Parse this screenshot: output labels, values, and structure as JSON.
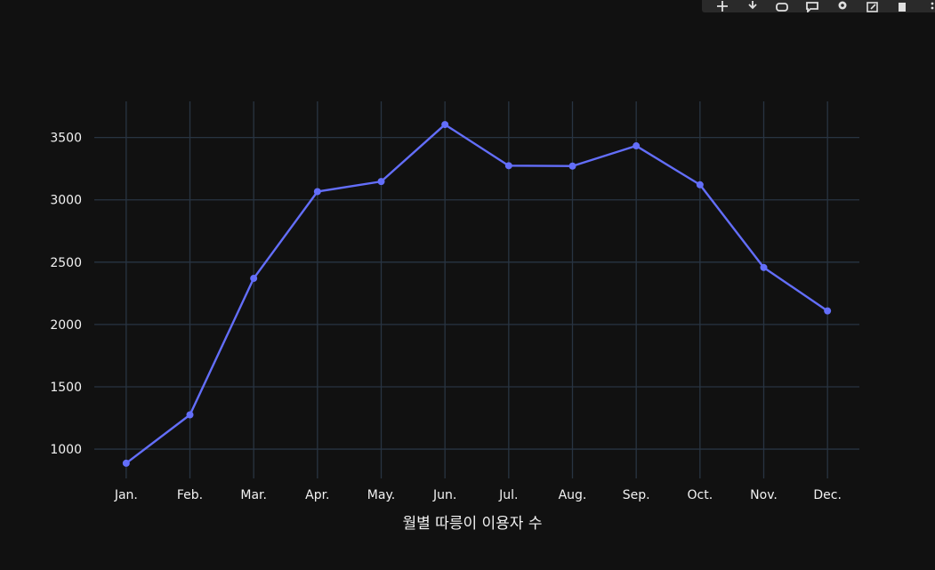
{
  "chart_data": {
    "type": "line",
    "categories": [
      "Jan.",
      "Feb.",
      "Mar.",
      "Apr.",
      "May.",
      "Jun.",
      "Jul.",
      "Aug.",
      "Sep.",
      "Oct.",
      "Nov.",
      "Dec."
    ],
    "series": [
      {
        "values": [
          887,
          1275,
          2370,
          3066,
          3147,
          3604,
          3274,
          3271,
          3433,
          3121,
          2457,
          2109
        ],
        "color": "#636efa"
      }
    ],
    "xlabel": "월별 따릉이 이용자 수",
    "ylabel": "",
    "ylim": [
      765,
      3790
    ],
    "yticks": [
      1000,
      1500,
      2000,
      2500,
      3000,
      3500
    ],
    "grid": true,
    "colors": {
      "background": "#111111",
      "grid": "#283442",
      "tick_text": "#f2f2f2"
    }
  },
  "modebar": {
    "icons": [
      "zoom-in-icon",
      "zoom-out-icon",
      "autoscale-icon",
      "comment-icon",
      "settings-icon",
      "download-icon",
      "trash-icon",
      "more-icon"
    ]
  }
}
